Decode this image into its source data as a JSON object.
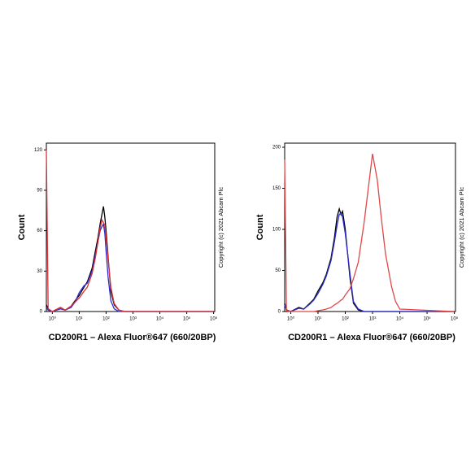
{
  "chart_data": [
    {
      "type": "line",
      "y_title": "Count",
      "x_title": "CD200R1 – Alexa Fluor®647 (660/20BP)",
      "note": "Copyright (c) 2021 Abcam Plc",
      "x_log": true,
      "x": [
        0.6,
        0.7,
        1,
        2,
        3,
        5,
        7,
        10,
        15,
        20,
        30,
        40,
        50,
        60,
        70,
        80,
        90,
        100,
        120,
        150,
        200,
        300,
        500,
        1000,
        1000000
      ],
      "series": [
        {
          "color": "#000000",
          "values": [
            5,
            2,
            0,
            3,
            1,
            4,
            8,
            12,
            18,
            22,
            32,
            45,
            55,
            65,
            72,
            78,
            70,
            60,
            40,
            15,
            5,
            1,
            0,
            0,
            0
          ]
        },
        {
          "color": "#2b2bd0",
          "values": [
            3,
            1,
            0,
            2,
            1,
            3,
            7,
            14,
            19,
            21,
            30,
            42,
            52,
            60,
            63,
            65,
            58,
            45,
            25,
            8,
            2,
            0,
            0,
            0,
            0
          ]
        },
        {
          "color": "#e0303a",
          "values": [
            120,
            2,
            0,
            3,
            1,
            4,
            7,
            10,
            15,
            18,
            28,
            40,
            52,
            62,
            68,
            66,
            64,
            55,
            38,
            18,
            6,
            1,
            0,
            0,
            0
          ]
        }
      ],
      "xlim": [
        0.6,
        1100000
      ],
      "xticks": [
        {
          "value": 1,
          "label": "10⁰"
        },
        {
          "value": 10,
          "label": "10¹"
        },
        {
          "value": 100,
          "label": "10²"
        },
        {
          "value": 1000,
          "label": "10³"
        },
        {
          "value": 10000,
          "label": "10⁴"
        },
        {
          "value": 100000,
          "label": "10⁵"
        },
        {
          "value": 1000000,
          "label": "10⁶"
        }
      ],
      "ylim": [
        0,
        125
      ],
      "yticks": [
        0,
        30,
        60,
        90,
        120
      ]
    },
    {
      "type": "line",
      "y_title": "Count",
      "x_title": "CD200R1 – Alexa Fluor®647 (660/20BP)",
      "note": "Copyright (c) 2021 Abcam Plc",
      "x_log": true,
      "x": [
        0.6,
        0.7,
        1,
        2,
        3,
        5,
        7,
        10,
        15,
        20,
        30,
        40,
        50,
        60,
        70,
        80,
        100,
        150,
        200,
        300,
        500,
        700,
        1000,
        1500,
        2000,
        3000,
        5000,
        7000,
        10000,
        1000000
      ],
      "series": [
        {
          "color": "#000000",
          "values": [
            10,
            2,
            0,
            5,
            3,
            10,
            15,
            25,
            35,
            45,
            65,
            90,
            115,
            125,
            118,
            122,
            100,
            40,
            10,
            2,
            0,
            0,
            0,
            0,
            0,
            0,
            0,
            0,
            0,
            0
          ]
        },
        {
          "color": "#2b2bd0",
          "values": [
            8,
            2,
            0,
            4,
            3,
            9,
            14,
            22,
            33,
            43,
            62,
            85,
            105,
            118,
            120,
            115,
            95,
            45,
            12,
            3,
            0,
            0,
            0,
            0,
            0,
            0,
            0,
            0,
            0,
            0
          ]
        },
        {
          "color": "#e04848",
          "values": [
            185,
            1,
            0,
            0,
            0,
            0,
            0,
            1,
            2,
            3,
            5,
            8,
            10,
            12,
            14,
            15,
            20,
            28,
            40,
            60,
            110,
            150,
            192,
            160,
            120,
            70,
            30,
            12,
            3,
            0
          ]
        }
      ],
      "xlim": [
        0.6,
        1100000
      ],
      "xticks": [
        {
          "value": 1,
          "label": "10⁰"
        },
        {
          "value": 10,
          "label": "10¹"
        },
        {
          "value": 100,
          "label": "10²"
        },
        {
          "value": 1000,
          "label": "10³"
        },
        {
          "value": 10000,
          "label": "10⁴"
        },
        {
          "value": 100000,
          "label": "10⁵"
        },
        {
          "value": 1000000,
          "label": "10⁶"
        }
      ],
      "ylim": [
        0,
        205
      ],
      "yticks": [
        0,
        50,
        100,
        150,
        200
      ]
    }
  ]
}
